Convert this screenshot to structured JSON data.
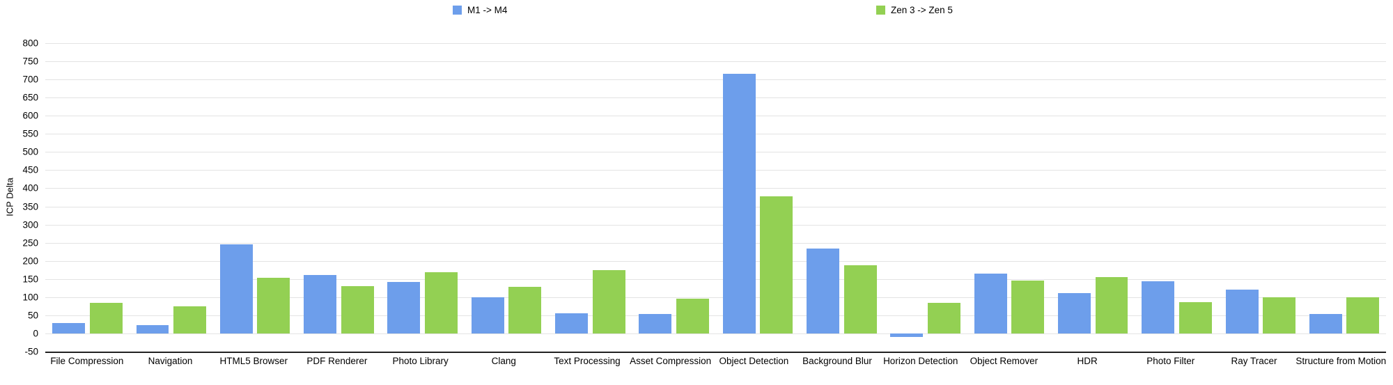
{
  "chart_data": {
    "type": "bar",
    "title": "",
    "xlabel": "",
    "ylabel": "ICP Delta",
    "ylim": [
      -50,
      800
    ],
    "y_tick_step": 50,
    "y_tick_labels": [
      "800",
      "750",
      "700",
      "650",
      "600",
      "550",
      "500",
      "450",
      "400",
      "350",
      "300",
      "250",
      "200",
      "150",
      "100",
      "50",
      "0",
      "-50"
    ],
    "grid": true,
    "legend_position": "top",
    "categories": [
      "File Compression",
      "Navigation",
      "HTML5 Browser",
      "PDF Renderer",
      "Photo Library",
      "Clang",
      "Text Processing",
      "Asset Compression",
      "Object Detection",
      "Background Blur",
      "Horizon Detection",
      "Object Remover",
      "HDR",
      "Photo Filter",
      "Ray Tracer",
      "Structure from Motion"
    ],
    "series": [
      {
        "name": "M1 -> M4",
        "color": "#6d9eeb",
        "values": [
          28,
          22,
          245,
          161,
          142,
          100,
          56,
          54,
          715,
          234,
          -10,
          164,
          112,
          144,
          120,
          53
        ]
      },
      {
        "name": "Zen 3 -> Zen 5",
        "color": "#93d053",
        "values": [
          85,
          75,
          154,
          130,
          168,
          129,
          175,
          95,
          378,
          188,
          84,
          146,
          156,
          86,
          99,
          100
        ]
      }
    ],
    "grid_color": "#e3e3e3",
    "axis_line_color": "#212121",
    "text_color": "#000000"
  }
}
